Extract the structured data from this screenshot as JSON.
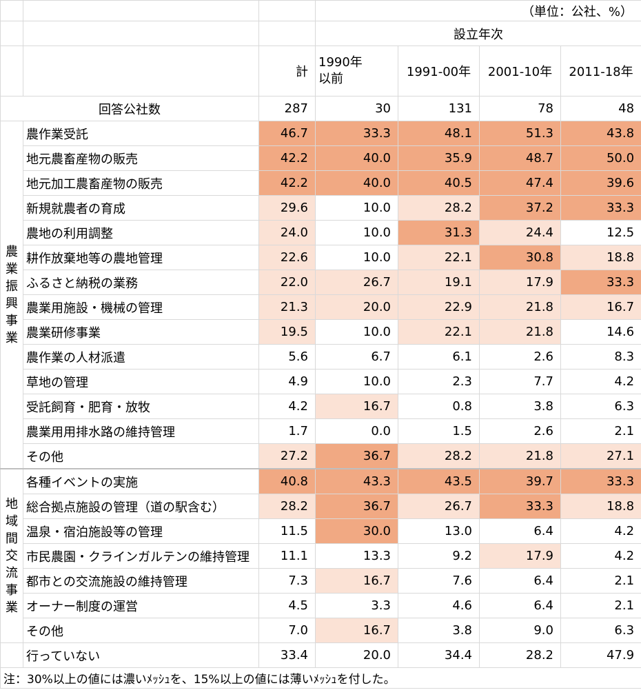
{
  "unit": "（単位：公社、%）",
  "group_header": "設立年次",
  "columns": [
    "計",
    "1990年\n以前",
    "1991-00年",
    "2001-10年",
    "2011-18年"
  ],
  "count_row": {
    "label": "回答公社数",
    "values": [
      "287",
      "30",
      "131",
      "78",
      "48"
    ]
  },
  "sections": [
    {
      "category": "農業振興事業",
      "rows": [
        {
          "label": "農作業受託",
          "values": [
            "46.7",
            "33.3",
            "48.1",
            "51.3",
            "43.8"
          ]
        },
        {
          "label": "地元農畜産物の販売",
          "values": [
            "42.2",
            "40.0",
            "35.9",
            "48.7",
            "50.0"
          ]
        },
        {
          "label": "地元加工農畜産物の販売",
          "values": [
            "42.2",
            "40.0",
            "40.5",
            "47.4",
            "39.6"
          ]
        },
        {
          "label": "新規就農者の育成",
          "values": [
            "29.6",
            "10.0",
            "28.2",
            "37.2",
            "33.3"
          ]
        },
        {
          "label": "農地の利用調整",
          "values": [
            "24.0",
            "10.0",
            "31.3",
            "24.4",
            "12.5"
          ]
        },
        {
          "label": "耕作放棄地等の農地管理",
          "values": [
            "22.6",
            "10.0",
            "22.1",
            "30.8",
            "18.8"
          ]
        },
        {
          "label": "ふるさと納税の業務",
          "values": [
            "22.0",
            "26.7",
            "19.1",
            "17.9",
            "33.3"
          ]
        },
        {
          "label": "農業用施設・機械の管理",
          "values": [
            "21.3",
            "20.0",
            "22.9",
            "21.8",
            "16.7"
          ]
        },
        {
          "label": "農業研修事業",
          "values": [
            "19.5",
            "10.0",
            "22.1",
            "21.8",
            "14.6"
          ]
        },
        {
          "label": "農作業の人材派遣",
          "values": [
            "5.6",
            "6.7",
            "6.1",
            "2.6",
            "8.3"
          ]
        },
        {
          "label": "草地の管理",
          "values": [
            "4.9",
            "10.0",
            "2.3",
            "7.7",
            "4.2"
          ]
        },
        {
          "label": "受託飼育・肥育・放牧",
          "values": [
            "4.2",
            "16.7",
            "0.8",
            "3.8",
            "6.3"
          ]
        },
        {
          "label": "農業用用排水路の維持管理",
          "values": [
            "1.7",
            "0.0",
            "1.5",
            "2.6",
            "2.1"
          ]
        },
        {
          "label": "その他",
          "values": [
            "27.2",
            "36.7",
            "28.2",
            "21.8",
            "27.1"
          ]
        }
      ]
    },
    {
      "category": "地域間交流事業",
      "rows": [
        {
          "label": "各種イベントの実施",
          "values": [
            "40.8",
            "43.3",
            "43.5",
            "39.7",
            "33.3"
          ]
        },
        {
          "label": "総合拠点施設の管理（道の駅含む）",
          "values": [
            "28.2",
            "36.7",
            "26.7",
            "33.3",
            "18.8"
          ]
        },
        {
          "label": "温泉・宿泊施設等の管理",
          "values": [
            "11.5",
            "30.0",
            "13.0",
            "6.4",
            "4.2"
          ]
        },
        {
          "label": "市民農園・クラインガルテンの維持管理",
          "values": [
            "11.1",
            "13.3",
            "9.2",
            "17.9",
            "4.2"
          ]
        },
        {
          "label": "都市との交流施設の維持管理",
          "values": [
            "7.3",
            "16.7",
            "7.6",
            "6.4",
            "2.1"
          ]
        },
        {
          "label": "オーナー制度の運営",
          "values": [
            "4.5",
            "3.3",
            "4.6",
            "6.4",
            "2.1"
          ]
        },
        {
          "label": "その他",
          "values": [
            "7.0",
            "16.7",
            "3.8",
            "9.0",
            "6.3"
          ]
        }
      ]
    }
  ],
  "not_doing_row": {
    "label": "行っていない",
    "values": [
      "33.4",
      "20.0",
      "34.4",
      "28.2",
      "47.9"
    ]
  },
  "note": "注：30%以上の値には濃いﾒｯｼｭを、15%以上の値には薄いﾒｯｼｭを付した。",
  "colors": {
    "dark": "#f1a983",
    "light": "#fbe2d5"
  },
  "thresholds": {
    "dark": 30,
    "light": 15
  }
}
